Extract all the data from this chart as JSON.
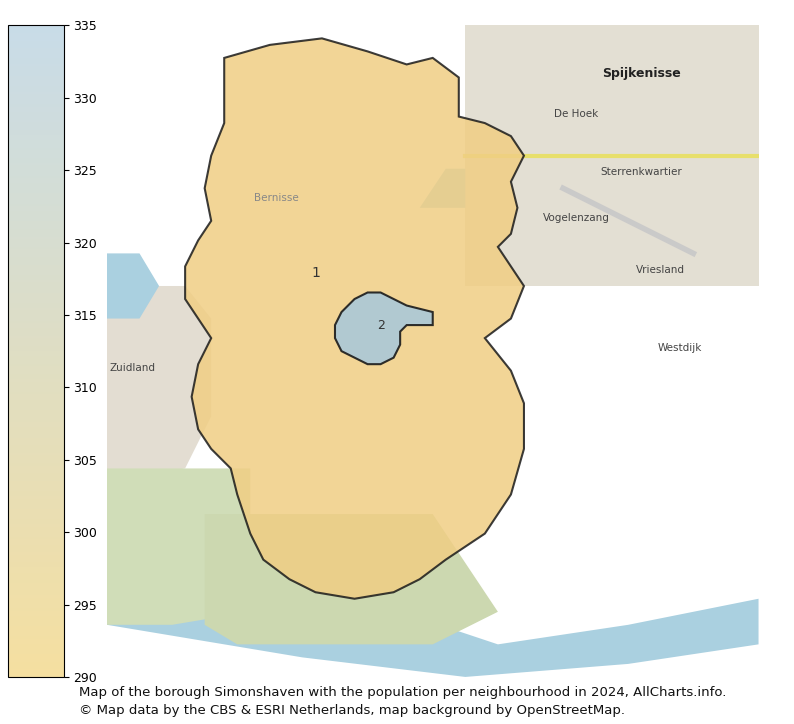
{
  "title": "",
  "caption_line1": "Map of the borough Simonshaven with the population per neighbourhood in 2024, AllCharts.info.",
  "caption_line2": "© Map data by the CBS & ESRI Netherlands, map background by OpenStreetMap.",
  "colorbar_min": 290,
  "colorbar_max": 335,
  "colorbar_ticks": [
    290,
    295,
    300,
    305,
    310,
    315,
    320,
    325,
    330,
    335
  ],
  "colorbar_colors_bottom": "#f5dfa0",
  "colorbar_colors_top": "#c8dce8",
  "neighbourhood1_color": "#f0ce84",
  "neighbourhood1_alpha": 0.85,
  "neighbourhood1_label": "1",
  "neighbourhood2_color": "#aac8d8",
  "neighbourhood2_alpha": 0.85,
  "neighbourhood2_label": "2",
  "border_color": "#1a1a1a",
  "border_linewidth": 1.5,
  "fig_width": 7.94,
  "fig_height": 7.24,
  "dpi": 100,
  "background_color": "#ffffff",
  "map_bg_color": "#e8f0d8",
  "caption_fontsize": 9.5,
  "label_fontsize": 10,
  "colorbar_label_fontsize": 9
}
